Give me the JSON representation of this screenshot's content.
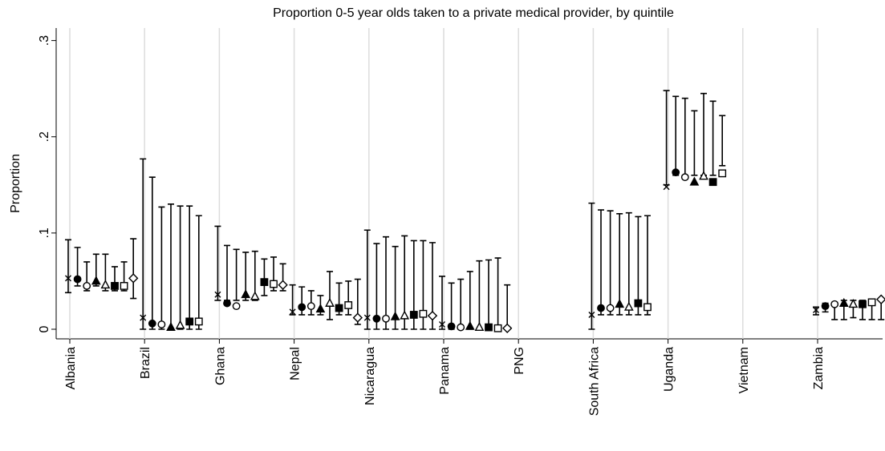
{
  "chart_data": {
    "type": "dot-errorbar",
    "title": "Proportion 0-5 year olds taken to a private medical provider, by quintile",
    "y_label": "Proportion",
    "categories": [
      "Albania",
      "Brazil",
      "Ghana",
      "Nepal",
      "Nicaragua",
      "Panama",
      "PNG",
      "South Africa",
      "Uganda",
      "Vietnam",
      "Zambia"
    ],
    "ylim": [
      -0.01,
      0.313
    ],
    "yticks": [
      0,
      {
        "value": 0.1,
        "label": ".1"
      },
      {
        "value": 0.2,
        "label": ".2"
      },
      {
        "value": 0.3,
        "label": ".3"
      }
    ],
    "grid": true,
    "color": "#000000",
    "series": [
      {
        "marker": "x",
        "values": [
          0.053,
          0.012,
          0.036,
          0.018,
          0.012,
          0.005,
          null,
          0.015,
          0.148,
          null,
          0.02
        ],
        "lower": [
          0.038,
          0.0,
          0.03,
          0.015,
          0.0,
          0.0,
          null,
          0.0,
          0.15,
          null,
          0.015
        ],
        "upper": [
          0.093,
          0.177,
          0.107,
          0.046,
          0.103,
          0.055,
          null,
          0.131,
          0.248,
          null,
          0.023
        ]
      },
      {
        "marker": "circle",
        "values": [
          0.052,
          0.006,
          0.027,
          0.023,
          0.011,
          0.003,
          null,
          0.022,
          0.163,
          null,
          0.024
        ],
        "lower": [
          0.045,
          0.0,
          0.03,
          0.015,
          0.0,
          0.0,
          null,
          0.015,
          0.16,
          null,
          0.018
        ],
        "upper": [
          0.085,
          0.158,
          0.087,
          0.044,
          0.089,
          0.048,
          null,
          0.124,
          0.242,
          null,
          0.027
        ]
      },
      {
        "marker": "circle-open",
        "values": [
          0.045,
          0.005,
          0.024,
          0.024,
          0.011,
          0.002,
          null,
          0.022,
          0.158,
          null,
          0.026
        ],
        "lower": [
          0.04,
          0.0,
          0.03,
          0.015,
          0.0,
          0.0,
          null,
          0.015,
          0.16,
          null,
          0.01
        ],
        "upper": [
          0.07,
          0.127,
          0.083,
          0.04,
          0.096,
          0.052,
          null,
          0.123,
          0.24,
          null,
          0.028
        ]
      },
      {
        "marker": "triangle",
        "values": [
          0.05,
          0.002,
          0.036,
          0.021,
          0.013,
          0.003,
          null,
          0.026,
          0.153,
          null,
          0.027
        ],
        "lower": [
          0.045,
          0.0,
          0.03,
          0.015,
          0.0,
          0.0,
          null,
          0.015,
          0.16,
          null,
          0.01
        ],
        "upper": [
          0.078,
          0.13,
          0.08,
          0.035,
          0.086,
          0.06,
          null,
          0.12,
          0.227,
          null,
          0.03
        ]
      },
      {
        "marker": "triangle-open",
        "values": [
          0.046,
          0.004,
          0.034,
          0.027,
          0.014,
          0.002,
          null,
          0.023,
          0.159,
          null,
          0.026
        ],
        "lower": [
          0.04,
          0.0,
          0.03,
          0.01,
          0.0,
          0.0,
          null,
          0.015,
          0.16,
          null,
          0.012
        ],
        "upper": [
          0.078,
          0.128,
          0.081,
          0.06,
          0.097,
          0.071,
          null,
          0.121,
          0.245,
          null,
          0.03
        ]
      },
      {
        "marker": "square",
        "values": [
          0.045,
          0.008,
          0.049,
          0.022,
          0.015,
          0.002,
          null,
          0.027,
          0.153,
          null,
          0.026
        ],
        "lower": [
          0.04,
          0.0,
          0.035,
          0.015,
          0.0,
          0.0,
          null,
          0.015,
          0.16,
          null,
          0.01
        ],
        "upper": [
          0.065,
          0.128,
          0.073,
          0.048,
          0.092,
          0.072,
          null,
          0.117,
          0.237,
          null,
          0.03
        ]
      },
      {
        "marker": "square-open",
        "values": [
          0.045,
          0.008,
          0.047,
          0.025,
          0.016,
          0.001,
          null,
          0.023,
          0.162,
          null,
          0.028
        ],
        "lower": [
          0.04,
          0.0,
          0.04,
          0.015,
          0.0,
          0.0,
          null,
          0.015,
          0.17,
          null,
          0.01
        ],
        "upper": [
          0.07,
          0.118,
          0.075,
          0.05,
          0.092,
          0.074,
          null,
          0.118,
          0.222,
          null,
          0.03
        ]
      },
      {
        "marker": "diamond-open",
        "values": [
          0.053,
          null,
          0.046,
          0.012,
          0.014,
          0.001,
          null,
          null,
          null,
          null,
          0.031
        ],
        "lower": [
          0.032,
          null,
          0.04,
          0.005,
          0.0,
          0.0,
          null,
          null,
          null,
          null,
          0.01
        ],
        "upper": [
          0.094,
          null,
          0.068,
          0.052,
          0.09,
          0.046,
          null,
          null,
          null,
          null,
          0.032
        ]
      }
    ]
  }
}
